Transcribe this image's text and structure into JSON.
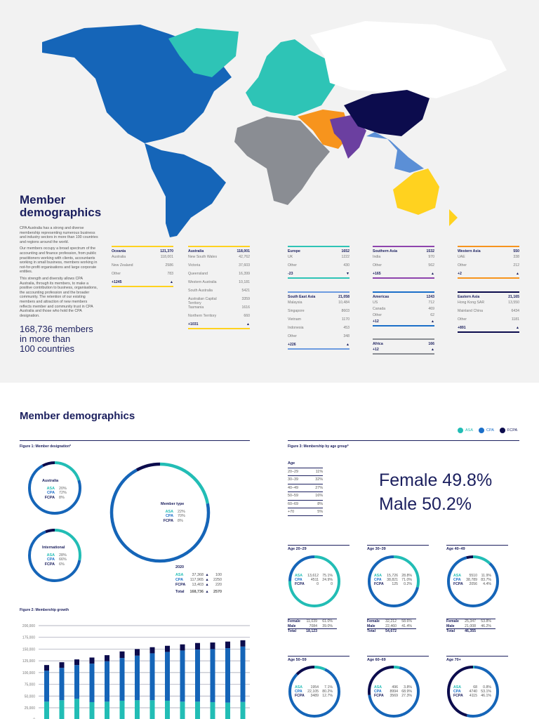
{
  "map": {
    "colors": {
      "americas": "#1565b8",
      "greenland_europe": "#2ec4b6",
      "russia": "#ffffff",
      "africa": "#8a8d93",
      "western_asia": "#f7941d",
      "southern_asia": "#6b3fa0",
      "eastern_asia": "#0c0c4d",
      "south_east_asia": "#5b8fd6",
      "oceania": "#ffd21f"
    }
  },
  "intro": {
    "title_line1": "Member",
    "title_line2": "demographics",
    "paragraphs": [
      "CPA Australia has a strong and diverse membership representing numerous business and industry sectors in more than 100 countries and regions around the world.",
      "Our members occupy a broad spectrum of the accounting and finance profession, from public practitioners working with clients, accountants working in small business, members working in not-for-profit organisations and large corporate entities.",
      "This strength and diversity allows CPA Australia, through its members, to make a positive contribution to business, organisations, the accounting profession and the broader community. The retention of our existing members and attraction of new members reflects member and community trust in CPA Australia and those who hold the CPA designation."
    ],
    "headline": [
      "168,736 members",
      "in more than",
      "100 countries"
    ]
  },
  "regions": [
    {
      "name": "Oceania",
      "total": "121,370",
      "color": "#ffd21f",
      "rows": [
        [
          "Australia",
          "118,001"
        ],
        [
          "New Zealand",
          "2586"
        ],
        [
          "Other",
          "783"
        ]
      ],
      "change": "+1245",
      "trend": "up"
    },
    {
      "name": "Australia",
      "total": "118,001",
      "color": "#ffd21f",
      "rows": [
        [
          "New South Wales",
          "42,762"
        ],
        [
          "Victoria",
          "37,603"
        ],
        [
          "Queensland",
          "16,399"
        ],
        [
          "Western Australia",
          "10,181"
        ],
        [
          "South Australia",
          "5421"
        ],
        [
          "Australian Capital Territory",
          "3359"
        ],
        [
          "Tasmania",
          "1616"
        ],
        [
          "Northern Territory",
          "660"
        ]
      ],
      "change": "+1031",
      "trend": "up"
    },
    {
      "name": "Europe",
      "total": "1652",
      "color": "#2ec4b6",
      "rows": [
        [
          "UK",
          "1222"
        ],
        [
          "Other",
          "430"
        ]
      ],
      "change": "-23",
      "trend": "down"
    },
    {
      "name": "Southern Asia",
      "total": "1532",
      "color": "#8e44ad",
      "rows": [
        [
          "India",
          "970"
        ],
        [
          "Other",
          "562"
        ]
      ],
      "change": "+165",
      "trend": "up"
    },
    {
      "name": "Western Asia",
      "total": "550",
      "color": "#f7941d",
      "rows": [
        [
          "UAE",
          "338"
        ],
        [
          "Other",
          "212"
        ]
      ],
      "change": "+2",
      "trend": "up"
    },
    {
      "name": "South East Asia",
      "total": "21,058",
      "color": "#6c9be0",
      "rows": [
        [
          "Malaysia",
          "10,484"
        ],
        [
          "Singapore",
          "8603"
        ],
        [
          "Vietnam",
          "1170"
        ],
        [
          "Indonesia",
          "453"
        ],
        [
          "Other",
          "348"
        ]
      ],
      "change": "+226",
      "trend": "up"
    },
    {
      "name": "Americas",
      "total": "1243",
      "color": "#1b6fc9",
      "rows": [
        [
          "US",
          "712"
        ],
        [
          "Canada",
          "469"
        ],
        [
          "Other",
          "62"
        ]
      ],
      "change": "+12",
      "trend": "up",
      "compact": true
    },
    {
      "name": "Eastern Asia",
      "total": "21,165",
      "color": "#0c0c4d",
      "rows": [
        [
          "Hong Kong SAR",
          "13,550"
        ],
        [
          "Mainland China",
          "6434"
        ],
        [
          "Other",
          "1181"
        ]
      ],
      "change": "+891",
      "trend": "up"
    },
    {
      "name": "Africa",
      "total": "166",
      "color": "#8a8d93",
      "rows": [],
      "change": "+12",
      "trend": "up"
    }
  ],
  "section": {
    "title": "Member demographics",
    "legend": [
      {
        "label": "ASA",
        "color": "#22bdb5"
      },
      {
        "label": "CPA",
        "color": "#1b6fc9"
      },
      {
        "label": "FCPA",
        "color": "#0c0c4d"
      }
    ]
  },
  "fig1": {
    "label": "Figure 1: Member designation*",
    "australia": {
      "title": "Australia",
      "rows": [
        [
          "ASA",
          "20%"
        ],
        [
          "CPA",
          "72%"
        ],
        [
          "FCPA",
          "8%"
        ]
      ],
      "values": [
        20,
        72,
        8
      ]
    },
    "international": {
      "title": "International",
      "rows": [
        [
          "ASA",
          "28%"
        ],
        [
          "CPA",
          "66%"
        ],
        [
          "FCPA",
          "6%"
        ]
      ],
      "values": [
        28,
        66,
        6
      ]
    },
    "member_type": {
      "title": "Member type",
      "rows": [
        [
          "ASA",
          "22%"
        ],
        [
          "CPA",
          "70%"
        ],
        [
          "FCPA",
          "8%"
        ]
      ],
      "values": [
        22,
        70,
        8
      ]
    },
    "year": "2020",
    "totals": [
      [
        "ASA",
        "37,368",
        "▲",
        "100"
      ],
      [
        "CPA",
        "117,965",
        "▲",
        "2250"
      ],
      [
        "FCPA",
        "13,403",
        "▲",
        "220"
      ],
      [
        "Total",
        "168,736",
        "▲",
        "2570"
      ]
    ]
  },
  "fig3": {
    "label": "Figure 3: Membership by age group*",
    "age_header": "Age",
    "ages": [
      [
        "20–29",
        "11%"
      ],
      [
        "30–39",
        "32%"
      ],
      [
        "40–49",
        "27%"
      ],
      [
        "50–59",
        "16%"
      ],
      [
        "60–69",
        "8%"
      ],
      [
        "+70",
        "5%"
      ]
    ],
    "female": "Female 49.8%",
    "male": "Male 50.2%",
    "groups": [
      {
        "title": "Age 20–29",
        "rows": [
          [
            "ASA",
            "13,612",
            "75.1%"
          ],
          [
            "CPA",
            "4511",
            "24.9%"
          ],
          [
            "FCPA",
            "0",
            "0"
          ]
        ],
        "values": [
          75.1,
          24.9,
          0
        ],
        "sex": [
          [
            "Female",
            "11,039",
            "61.0%"
          ],
          [
            "Male",
            "7084",
            "39.0%"
          ]
        ],
        "total": [
          "Total",
          "18,123"
        ]
      },
      {
        "title": "Age 30–39",
        "rows": [
          [
            "ASA",
            "15,726",
            "28.8%"
          ],
          [
            "CPA",
            "38,821",
            "71.0%"
          ],
          [
            "FCPA",
            "125",
            "0.2%"
          ]
        ],
        "values": [
          28.8,
          71.0,
          0.2
        ],
        "sex": [
          [
            "Female",
            "32,212",
            "58.6%"
          ],
          [
            "Male",
            "22,460",
            "41.4%"
          ]
        ],
        "total": [
          "Total",
          "54,672"
        ]
      },
      {
        "title": "Age 40–49",
        "rows": [
          [
            "ASA",
            "5510",
            "11.9%"
          ],
          [
            "CPA",
            "38,789",
            "83.7%"
          ],
          [
            "FCPA",
            "2056",
            "4.4%"
          ]
        ],
        "values": [
          11.9,
          83.7,
          4.4
        ],
        "sex": [
          [
            "Female",
            "25,347",
            "53.8%"
          ],
          [
            "Male",
            "21,008",
            "46.2%"
          ]
        ],
        "total": [
          "Total",
          "46,355"
        ]
      },
      {
        "title": "Age 50–59",
        "rows": [
          [
            "ASA",
            "1954",
            "7.1%"
          ],
          [
            "CPA",
            "22,105",
            "80.2%"
          ],
          [
            "FCPA",
            "3489",
            "12.7%"
          ]
        ],
        "values": [
          7.1,
          80.2,
          12.7
        ]
      },
      {
        "title": "Age 60–69",
        "rows": [
          [
            "ASA",
            "496",
            "3.8%"
          ],
          [
            "CPA",
            "8994",
            "68.9%"
          ],
          [
            "FCPA",
            "3569",
            "27.3%"
          ]
        ],
        "values": [
          3.8,
          68.9,
          27.3
        ]
      },
      {
        "title": "Age 70+",
        "rows": [
          [
            "ASA",
            "68",
            "0.8%"
          ],
          [
            "CPA",
            "4740",
            "53.1%"
          ],
          [
            "FCPA",
            "4115",
            "46.1%"
          ]
        ],
        "values": [
          0.8,
          53.1,
          46.1
        ]
      }
    ]
  },
  "chart_data": {
    "type": "bar",
    "stacked": true,
    "title": "Figure 2: Membership growth",
    "ylim": [
      0,
      200000
    ],
    "yticks": [
      "0",
      "25,000",
      "50,000",
      "75,000",
      "100,000",
      "125,000",
      "150,000",
      "175,000",
      "200,000"
    ],
    "grid": true,
    "series": [
      {
        "name": "ASA",
        "color": "#22bdb5",
        "values": [
          38000,
          41000,
          44000,
          37000,
          38000,
          40000,
          41000,
          41000,
          40000,
          38000,
          38000,
          37000,
          36000,
          37400
        ]
      },
      {
        "name": "CPA",
        "color": "#1565b8",
        "values": [
          66000,
          69000,
          72000,
          82000,
          86000,
          91000,
          95000,
          100000,
          104000,
          109000,
          111000,
          113000,
          116000,
          118000
        ]
      },
      {
        "name": "FCPA",
        "color": "#0c0c4d",
        "values": [
          12000,
          12000,
          12000,
          13000,
          13000,
          14000,
          14000,
          13000,
          13000,
          13000,
          14000,
          14000,
          14000,
          13400
        ]
      }
    ]
  }
}
